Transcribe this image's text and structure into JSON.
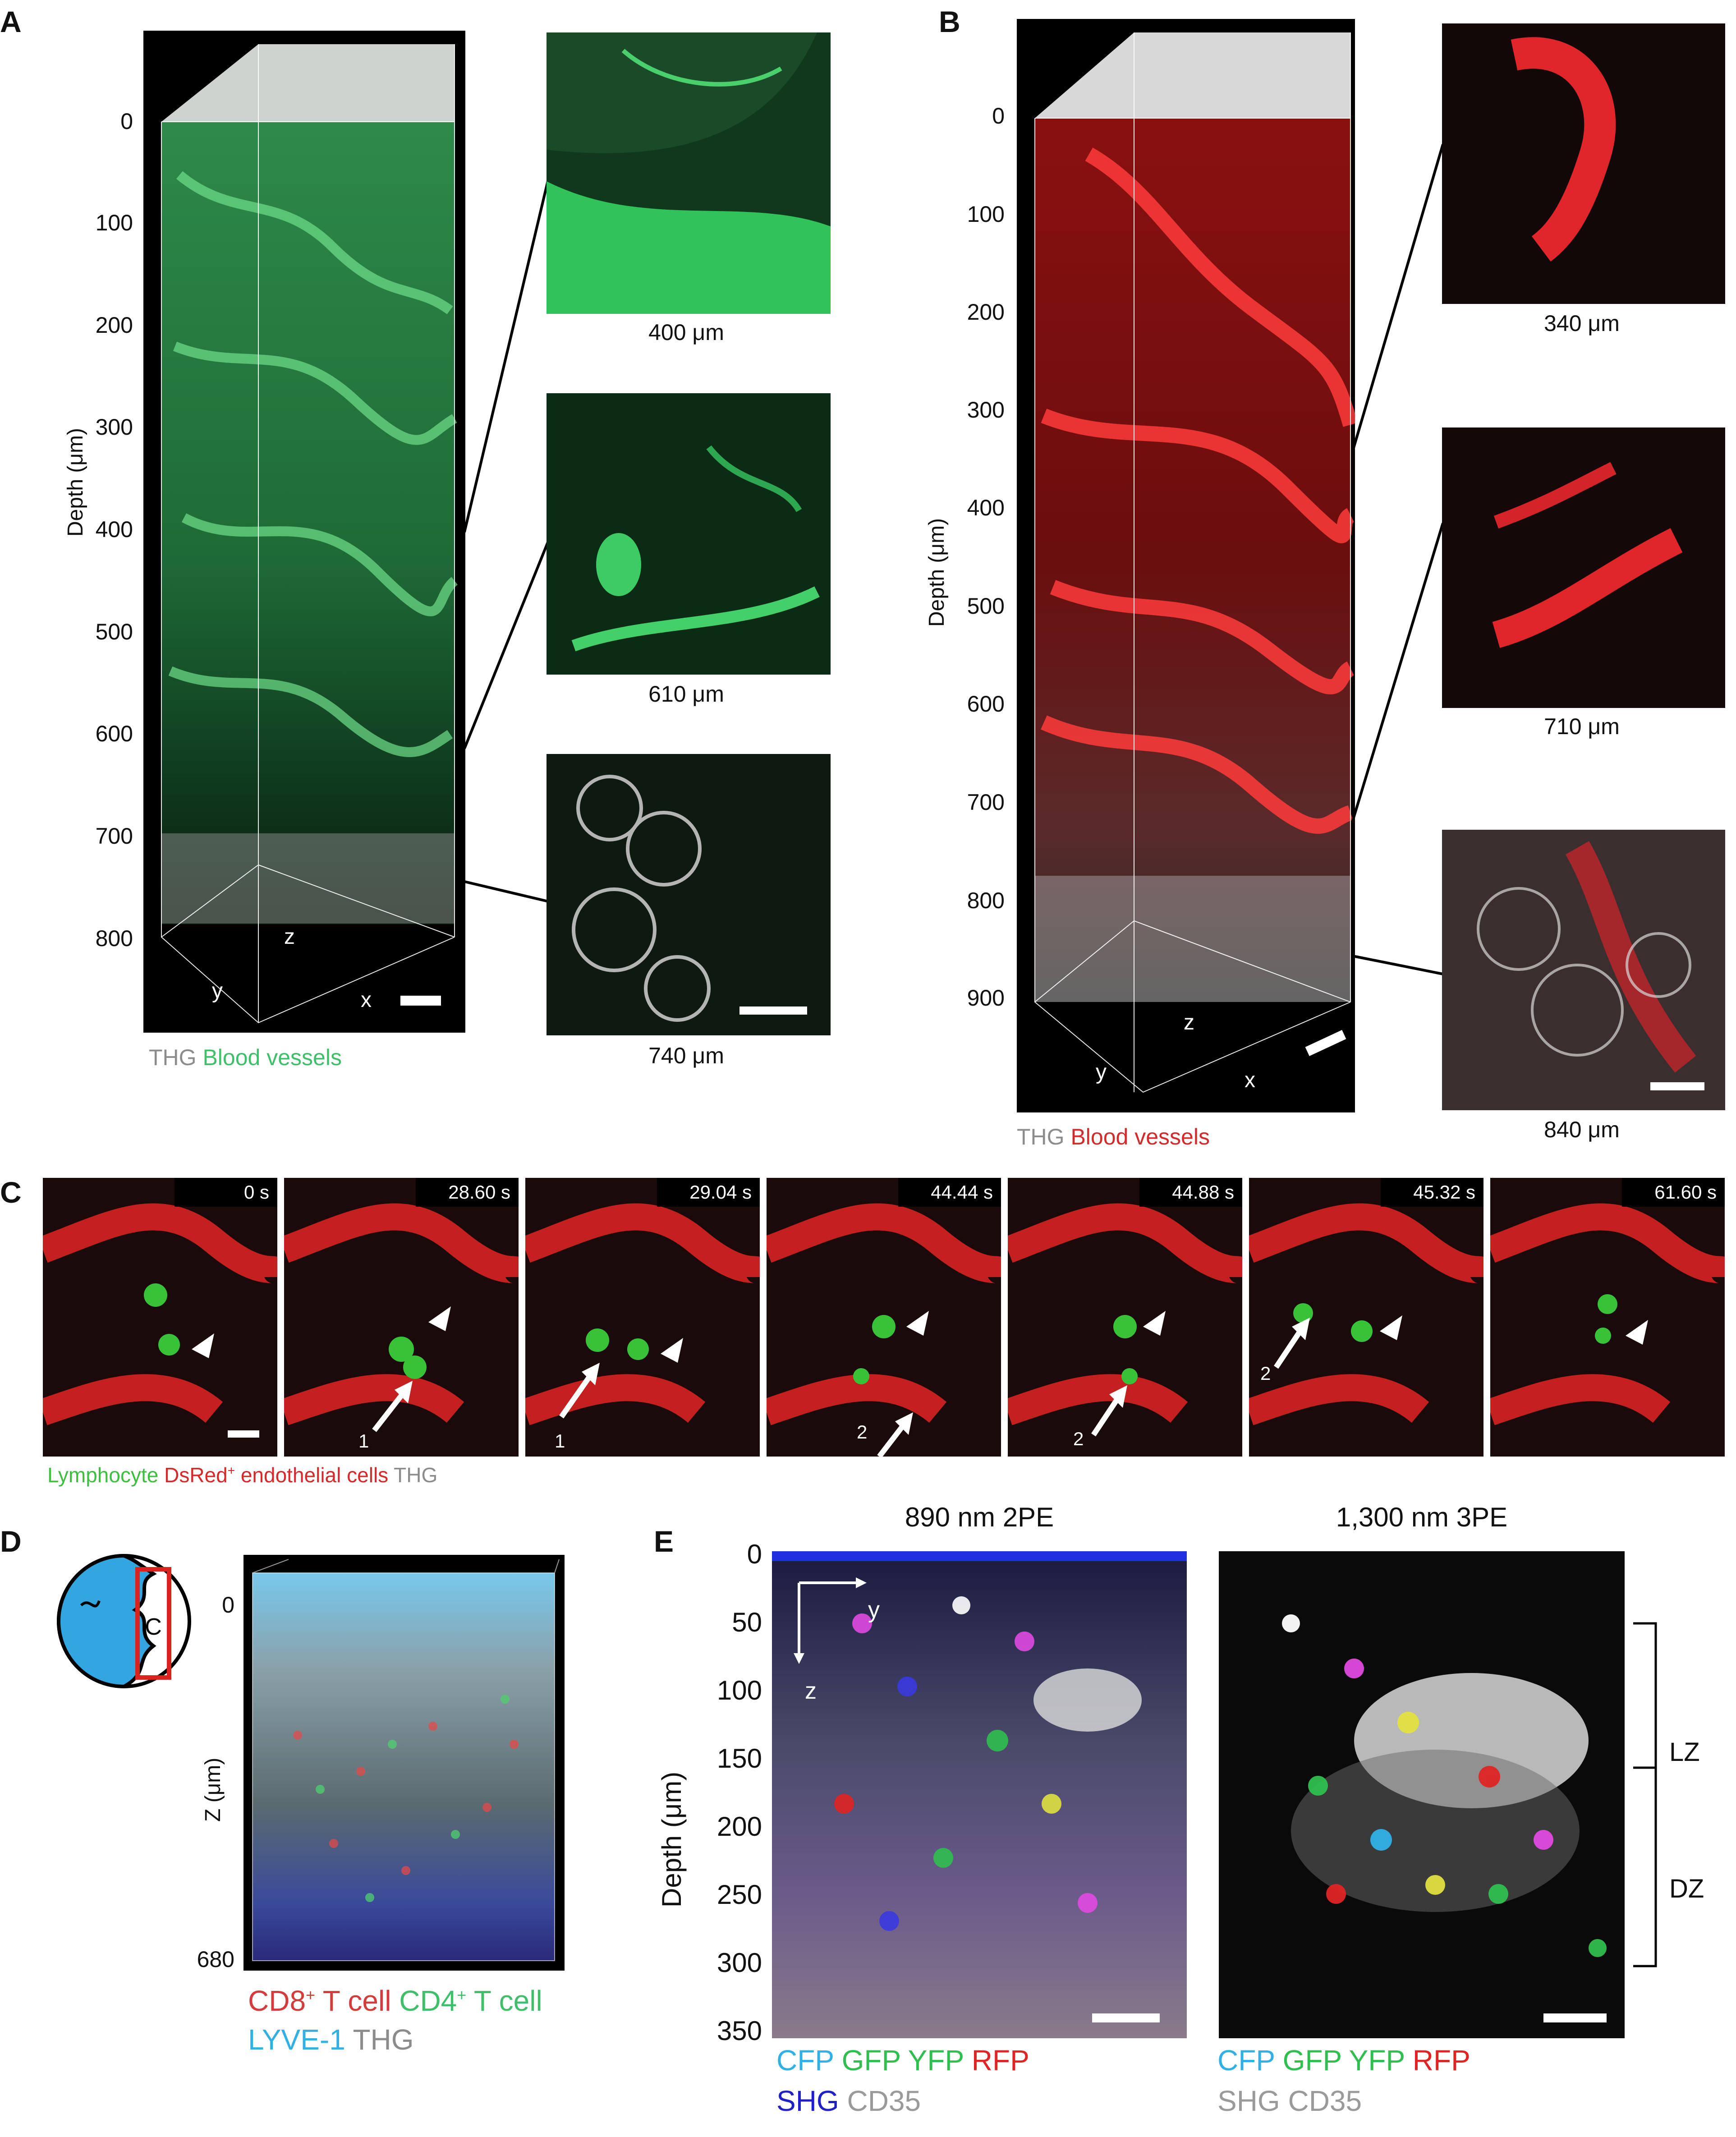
{
  "panels": {
    "A": {
      "label": "A",
      "axis_title": "Depth (μm)",
      "ticks": [
        "0",
        "100",
        "200",
        "300",
        "400",
        "500",
        "600",
        "700",
        "800"
      ],
      "axes": {
        "z": "z",
        "y": "y",
        "x": "x"
      },
      "insets": [
        "400 μm",
        "610 μm",
        "740 μm"
      ],
      "legend": [
        {
          "text": "THG",
          "color": "#8c8c8c"
        },
        {
          "text": "Blood vessels",
          "color": "#3fbf6a"
        }
      ]
    },
    "B": {
      "label": "B",
      "axis_title": "Depth (μm)",
      "ticks": [
        "0",
        "100",
        "200",
        "300",
        "400",
        "500",
        "600",
        "700",
        "800",
        "900"
      ],
      "axes": {
        "z": "z",
        "y": "y",
        "x": "x"
      },
      "insets": [
        "340 μm",
        "710 μm",
        "840 μm"
      ],
      "legend": [
        {
          "text": "THG",
          "color": "#8c8c8c"
        },
        {
          "text": "Blood vessels",
          "color": "#d42a2a"
        }
      ]
    },
    "C": {
      "label": "C",
      "frames": [
        "0 s",
        "28.60 s",
        "29.04 s",
        "44.44 s",
        "44.88 s",
        "45.32 s",
        "61.60 s"
      ],
      "arrow_labels": {
        "one": "1",
        "two": "2"
      },
      "legend": {
        "lymphocyte": "Lymphocyte",
        "dsred": "DsRed",
        "dsred_sup": "+",
        "endothelial": " endothelial cells",
        "thg": "THG"
      },
      "colors": {
        "lymphocyte": "#3fbf3f",
        "dsred": "#d42a2a",
        "thg": "#8c8c8c"
      }
    },
    "D": {
      "label": "D",
      "schematic_letter": "C",
      "axis_title": "Z (μm)",
      "ticks": [
        "0",
        "680"
      ],
      "legend_line1": [
        {
          "text": "CD8",
          "sup": "+",
          "rest": " T cell",
          "color": "#d63a3a"
        },
        {
          "text": "CD4",
          "sup": "+",
          "rest": " T cell",
          "color": "#3fbf6a"
        }
      ],
      "legend_line2": [
        {
          "text": "LYVE-1",
          "color": "#31b0e6"
        },
        {
          "text": "THG",
          "color": "#8c8c8c"
        }
      ]
    },
    "E": {
      "label": "E",
      "left_title": "890 nm 2PE",
      "right_title": "1,300 nm 3PE",
      "axis_title": "Depth (μm)",
      "ticks": [
        "0",
        "50",
        "100",
        "150",
        "200",
        "250",
        "300",
        "350"
      ],
      "axes": {
        "y": "y",
        "z": "z"
      },
      "zones": [
        "LZ",
        "DZ"
      ],
      "left_legend_line1": [
        {
          "text": "CFP",
          "color": "#31b0e6"
        },
        {
          "text": "GFP",
          "color": "#2fbf4f"
        },
        {
          "text": "YFP",
          "color": "#2fbf4f"
        },
        {
          "text": "RFP",
          "color": "#e02424"
        }
      ],
      "left_legend_line2": [
        {
          "text": "SHG",
          "color": "#2020c8"
        },
        {
          "text": "CD35",
          "color": "#9a9a9a"
        }
      ],
      "right_legend_line1": [
        {
          "text": "CFP",
          "color": "#31b0e6"
        },
        {
          "text": "GFP",
          "color": "#2fbf4f"
        },
        {
          "text": "YFP",
          "color": "#2fbf4f"
        },
        {
          "text": "RFP",
          "color": "#e02424"
        }
      ],
      "right_legend_line2": [
        {
          "text": "SHG",
          "color": "#9a9a9a"
        },
        {
          "text": "CD35",
          "color": "#9a9a9a"
        }
      ]
    }
  }
}
